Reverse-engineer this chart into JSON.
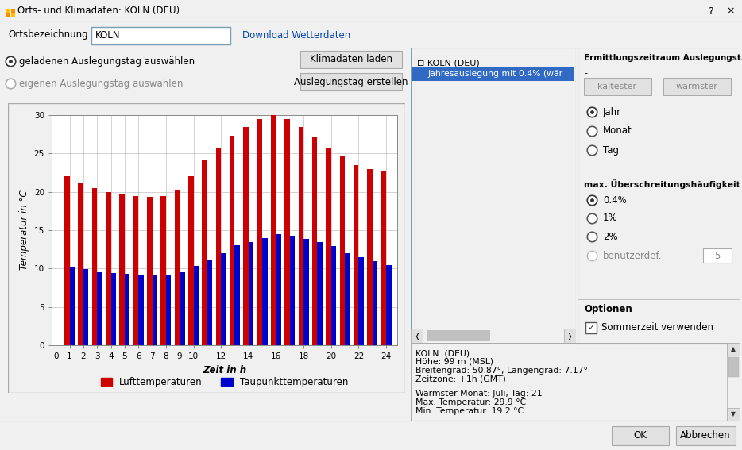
{
  "title": "Orts- und Klimadaten: KOLN (DEU)",
  "ylabel": "Temperatur in °C",
  "xlabel": "Zeit in h",
  "legend_red": "Lufttemperaturen",
  "legend_blue": "Taupunkttemperaturen",
  "hours": [
    1,
    2,
    3,
    4,
    5,
    6,
    7,
    8,
    9,
    10,
    11,
    12,
    13,
    14,
    15,
    16,
    17,
    18,
    19,
    20,
    21,
    22,
    23,
    24
  ],
  "luft": [
    22.0,
    21.2,
    20.5,
    20.0,
    19.8,
    19.5,
    19.3,
    19.5,
    20.2,
    22.0,
    24.2,
    25.8,
    27.3,
    28.5,
    29.5,
    30.0,
    29.5,
    28.5,
    27.2,
    25.7,
    24.6,
    23.5,
    23.0,
    22.7
  ],
  "taupunkt": [
    10.1,
    9.9,
    9.5,
    9.4,
    9.3,
    9.1,
    9.1,
    9.2,
    9.5,
    10.3,
    11.2,
    12.0,
    13.0,
    13.5,
    14.0,
    14.5,
    14.3,
    13.9,
    13.5,
    12.9,
    12.0,
    11.5,
    11.0,
    10.5
  ],
  "ylim": [
    0,
    30
  ],
  "yticks": [
    0,
    5,
    10,
    15,
    20,
    25,
    30
  ],
  "xticks": [
    0,
    1,
    2,
    3,
    4,
    5,
    6,
    7,
    8,
    9,
    10,
    12,
    14,
    16,
    18,
    20,
    22,
    24
  ],
  "bar_width": 0.38,
  "red_color": "#CC0000",
  "blue_color": "#0000CC",
  "grid_color": "#C0C0C0",
  "bg_color": "#FFFFFF",
  "panel_bg": "#F0F0F0",
  "titlebar_bg": "#F0F0F0",
  "border_color": "#AAAAAA",
  "btn_face": "#E1E1E1",
  "highlight_blue": "#3399FF",
  "tree_border": "#7A9EB5",
  "info_text": "KOLN  (DEU)\nHöhe: 99 m (MSL)\nBreitengrad: 50.87°, Längengrad: 7.17°\nZeitzone: +1h (GMT)\n\nWärmster Monat: Juli, Tag: 21\nMax. Temperatur: 29.9 °C\nMin. Temperatur: 19.2 °C"
}
